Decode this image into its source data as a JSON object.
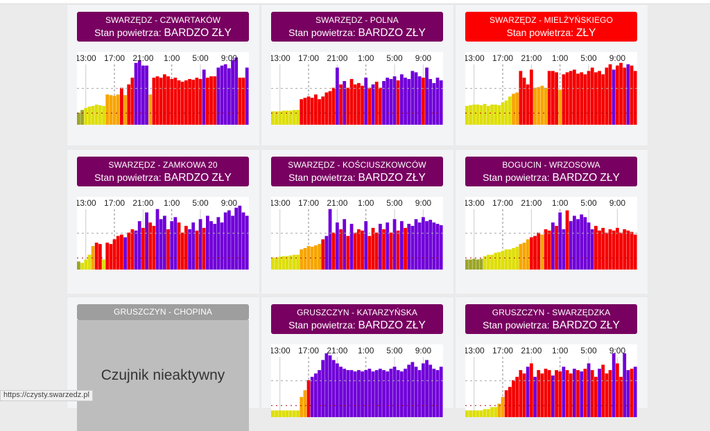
{
  "colors": {
    "header_bad": "#780060",
    "header_zly": "#fc0000",
    "header_inactive": "#9e9e9e",
    "g": "#9aa528",
    "y": "#dede0b",
    "o": "#f7a500",
    "r": "#f40000",
    "p": "#7000d8"
  },
  "time_labels": [
    "13:00",
    "17:00",
    "21:00",
    "1:00",
    "5:00",
    "9:00"
  ],
  "air_label": "Stan powietrza:",
  "stations": [
    {
      "name": "SWARZĘDZ - CZWARTAKÓW",
      "status": "BARDZO ZŁY",
      "level": "bad",
      "values": [
        18,
        22,
        25,
        27,
        28,
        30,
        29,
        28,
        45,
        44,
        43,
        45,
        55,
        44,
        60,
        70,
        92,
        96,
        88,
        88,
        45,
        70,
        72,
        70,
        75,
        72,
        68,
        70,
        66,
        64,
        66,
        68,
        67,
        70,
        68,
        82,
        70,
        72,
        72,
        85,
        88,
        90,
        84,
        96,
        100,
        70,
        70,
        85
      ],
      "levels": "ggyyyyyyoooororrpppporrrrrrrrrrrrrrprrrpppppprrp"
    },
    {
      "name": "SWARZĘDZ - POLNA",
      "status": "BARDZO ZŁY",
      "level": "bad",
      "values": [
        20,
        20,
        20,
        21,
        21,
        21,
        22,
        22,
        38,
        40,
        42,
        40,
        45,
        38,
        42,
        48,
        50,
        55,
        85,
        60,
        65,
        55,
        68,
        60,
        62,
        58,
        70,
        55,
        60,
        64,
        55,
        65,
        70,
        68,
        72,
        66,
        75,
        70,
        68,
        80,
        78,
        72,
        70,
        85,
        68,
        62,
        70,
        66
      ],
      "levels": "yyyyyyyyrrrrrrrrrrprprrrrrprprrpppprpppppprppppp"
    },
    {
      "name": "SWARZĘDZ - MIELŻYŃSKIEGO",
      "status": "ZŁY",
      "level": "zly",
      "values": [
        28,
        29,
        30,
        30,
        29,
        31,
        28,
        30,
        30,
        29,
        33,
        36,
        42,
        46,
        48,
        80,
        70,
        60,
        82,
        55,
        56,
        58,
        55,
        80,
        80,
        78,
        52,
        75,
        78,
        80,
        82,
        76,
        78,
        75,
        80,
        85,
        78,
        80,
        75,
        85,
        90,
        82,
        88,
        92,
        85,
        90,
        88,
        80
      ],
      "levels": "yyyyyyyyyyyyyoorrrroooorrrorrrrrrrrrrrrrrprrrprr"
    },
    {
      "name": "SWARZĘDZ - ZAMKOWA 20",
      "status": "BARDZO ZŁY",
      "level": "bad",
      "values": [
        12,
        10,
        15,
        22,
        35,
        40,
        38,
        15,
        40,
        38,
        45,
        50,
        52,
        48,
        55,
        60,
        58,
        72,
        62,
        85,
        70,
        65,
        90,
        75,
        80,
        60,
        72,
        78,
        70,
        55,
        65,
        60,
        70,
        58,
        75,
        62,
        80,
        72,
        68,
        78,
        70,
        85,
        88,
        80,
        92,
        95,
        85,
        80
      ],
      "levels": "gyyyorryrrrrrprrpprprrppprpprrrpprprpppppppppppp"
    },
    {
      "name": "SWARZĘDZ - KOŚCIUSZKOWCÓW",
      "status": "BARDZO ZŁY",
      "level": "bad",
      "values": [
        18,
        18,
        19,
        20,
        20,
        21,
        22,
        22,
        30,
        32,
        35,
        34,
        36,
        38,
        45,
        50,
        90,
        55,
        70,
        60,
        75,
        50,
        68,
        55,
        60,
        58,
        72,
        50,
        62,
        55,
        68,
        60,
        70,
        55,
        75,
        58,
        72,
        62,
        68,
        65,
        75,
        70,
        78,
        72,
        74,
        70,
        68,
        66
      ],
      "levels": "yyyyyyyyoooooorpprprprprrrprrrprprprprpppppppppp"
    },
    {
      "name": "BOGUCIN - WRZOSOWA",
      "status": "BARDZO ZŁY",
      "level": "bad",
      "values": [
        15,
        15,
        16,
        15,
        16,
        20,
        22,
        22,
        25,
        26,
        28,
        30,
        30,
        32,
        34,
        38,
        40,
        45,
        48,
        50,
        55,
        52,
        60,
        58,
        70,
        65,
        85,
        60,
        88,
        72,
        80,
        75,
        82,
        78,
        70,
        60,
        65,
        58,
        62,
        55,
        60,
        58,
        62,
        55,
        60,
        58,
        56,
        52
      ],
      "levels": "gggggyyyyyyyyyyooorrrorrprpprppppppprrrrrrrrrrrr"
    },
    {
      "name": "GRUSZCZYN - CHOPINA",
      "level": "inactive",
      "inactive_text": "Czujnik nieaktywny"
    },
    {
      "name": "GRUSZCZYN - KATARZYŃSKA",
      "status": "BARDZO ZŁY",
      "level": "bad",
      "values": [
        10,
        10,
        10,
        10,
        10,
        10,
        10,
        10,
        30,
        40,
        55,
        60,
        65,
        70,
        85,
        95,
        92,
        85,
        80,
        75,
        72,
        70,
        70,
        68,
        70,
        68,
        70,
        72,
        68,
        70,
        72,
        70,
        68,
        72,
        75,
        70,
        68,
        72,
        78,
        82,
        75,
        70,
        80,
        85,
        78,
        72,
        70,
        75
      ],
      "levels": "yyyyyyyyoorppppppppppppppppppppppppppppppppppppp"
    },
    {
      "name": "GRUSZCZYN - SWARZĘDZKA",
      "status": "BARDZO ZŁY",
      "level": "bad",
      "values": [
        10,
        10,
        10,
        10,
        10,
        12,
        12,
        15,
        15,
        20,
        30,
        40,
        45,
        55,
        60,
        70,
        65,
        75,
        80,
        60,
        70,
        65,
        72,
        70,
        62,
        70,
        68,
        75,
        70,
        65,
        72,
        70,
        68,
        72,
        80,
        70,
        60,
        72,
        78,
        65,
        70,
        95,
        80,
        60,
        95,
        70,
        72,
        75
      ],
      "levels": "yyyyyyyyyoorrrrrrprprrrrprrprrprprprrprrrprrpprp"
    }
  ],
  "status_bar": "https://czysty.swarzedz.pl"
}
